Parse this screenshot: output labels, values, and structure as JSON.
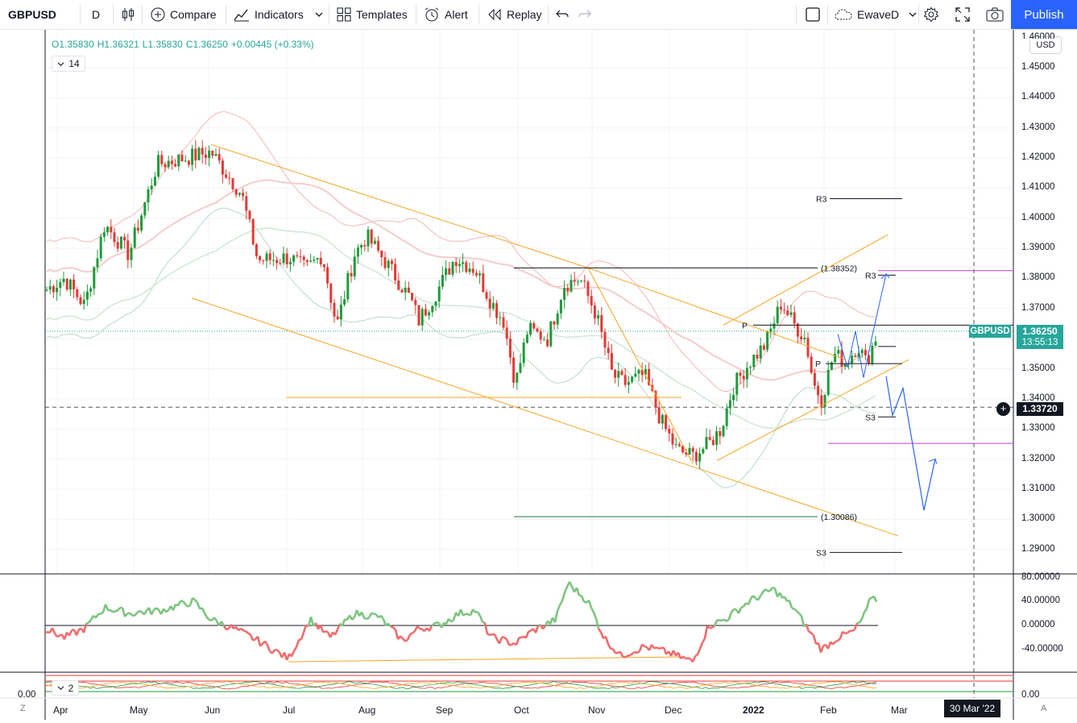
{
  "toolbar": {
    "symbol": "GBPUSD",
    "interval": "D",
    "compare": "Compare",
    "indicators": "Indicators",
    "templates": "Templates",
    "alert": "Alert",
    "replay": "Replay",
    "layout_name": "EwaveD",
    "publish": "Publish"
  },
  "legend": {
    "open": "O1.35830",
    "high": "H1.36321",
    "low": "L1.35830",
    "close": "C1.36250",
    "change": "+0.00445 (+0.33%)",
    "length": "14"
  },
  "price_axis": {
    "currency": "USD",
    "ticks": [
      "1.45000",
      "1.44000",
      "1.43000",
      "1.42000",
      "1.41000",
      "1.40000",
      "1.39000",
      "1.38000",
      "1.37000",
      "1.36000",
      "1.35000",
      "1.34000",
      "1.33000",
      "1.32000",
      "1.31000",
      "1.30000",
      "1.29000"
    ],
    "top_partial": "1.46000",
    "last_symbol": "GBPUSD",
    "last_price": "1.36250",
    "countdown": "13:55:13",
    "crosshair_price": "1.33720"
  },
  "osc_axis": {
    "ticks": [
      "80.00000",
      "40.00000",
      "0.00000",
      "-40.00000"
    ]
  },
  "osc2": {
    "length": "2",
    "left_zero": "0.00",
    "right_zero": "0.00"
  },
  "time_axis": {
    "months": [
      "Apr",
      "May",
      "Jun",
      "Jul",
      "Aug",
      "Sep",
      "Oct",
      "Nov",
      "Dec",
      "2022",
      "Feb",
      "Mar"
    ],
    "crosshair_date": "30 Mar '22"
  },
  "annotations": {
    "fib_high": "(1.38352)",
    "fib_low": "(1.30086)",
    "r3": "R3",
    "s3": "S3",
    "p": "P"
  },
  "footer": {
    "left": "Z",
    "right": "A"
  },
  "colors": {
    "up": "#26a69a",
    "candle_up": "#1e9b3a",
    "candle_down": "#e53935",
    "accent": "#2962ff",
    "channel": "#f5a623",
    "projection": "#2962ff",
    "pivot_magenta": "#c03ad6"
  }
}
